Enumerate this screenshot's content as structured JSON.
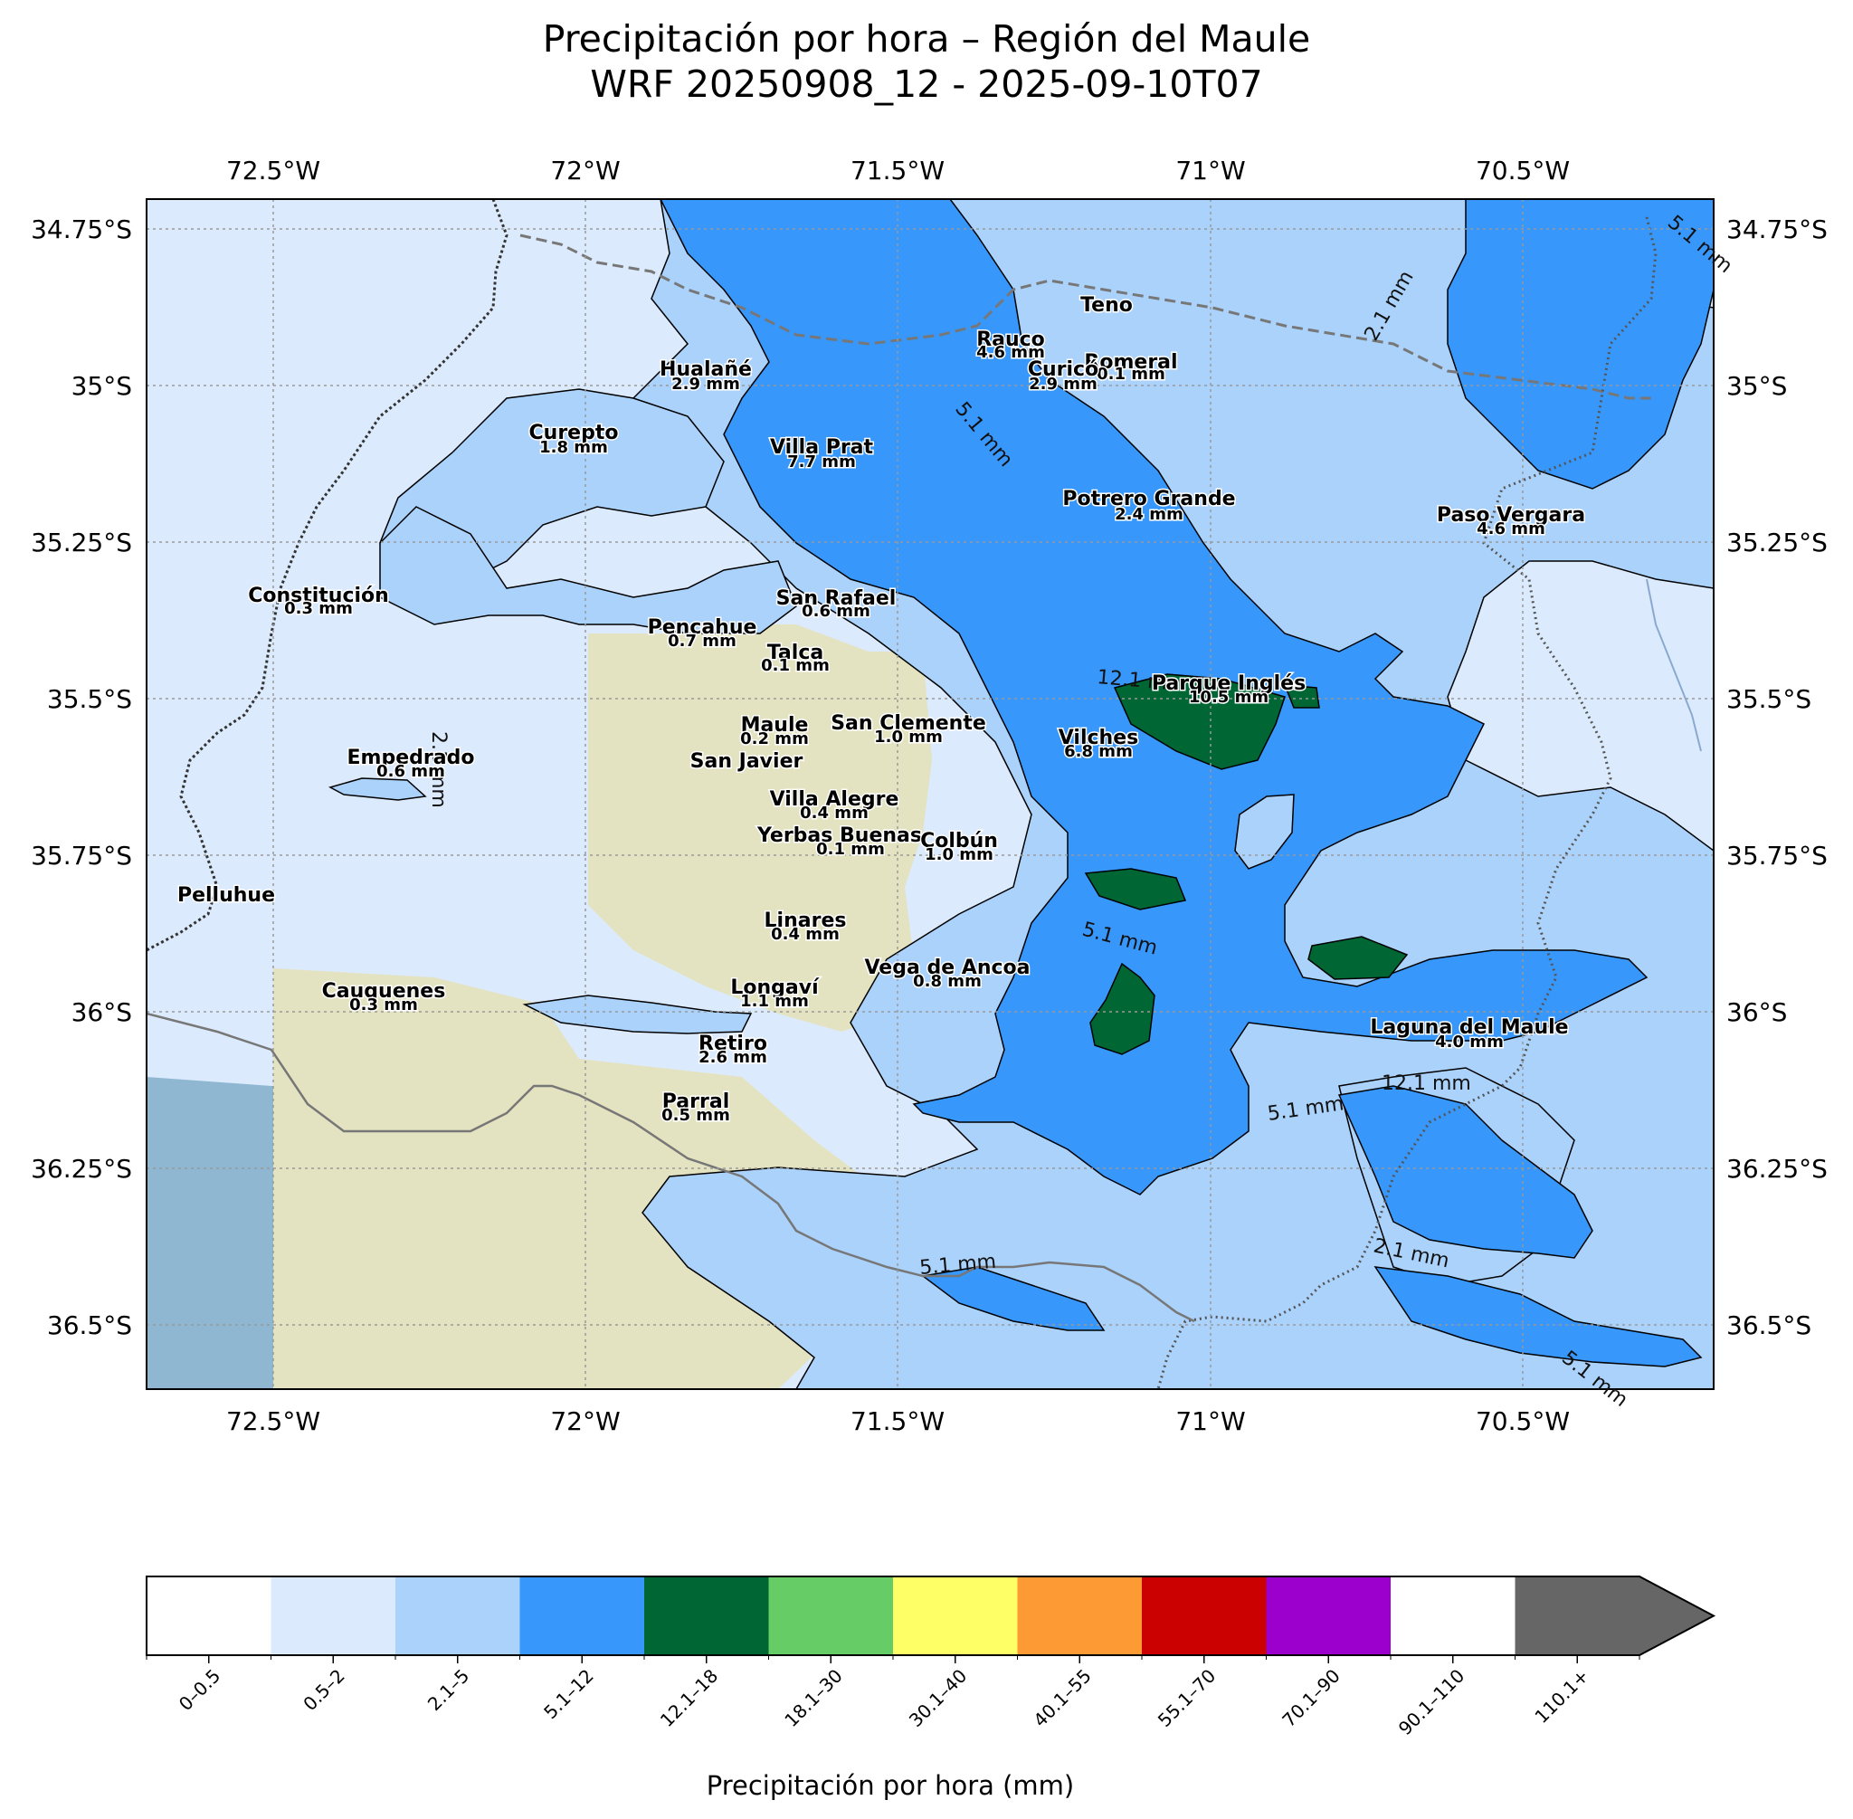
{
  "title": {
    "line1": "Precipitación por hora – Región del Maule",
    "line2": "WRF 20250908_12 - 2025-09-10T07"
  },
  "axes": {
    "lon_ticks": [
      "72.5°W",
      "72°W",
      "71.5°W",
      "71°W",
      "70.5°W"
    ],
    "lat_ticks": [
      "34.75°S",
      "35°S",
      "35.25°S",
      "35.5°S",
      "35.75°S",
      "36°S",
      "36.25°S",
      "36.5°S"
    ]
  },
  "stations": [
    {
      "name": "Teno",
      "value": ""
    },
    {
      "name": "Rauco",
      "value": "4.6 mm"
    },
    {
      "name": "Romeral",
      "value": "0.1 mm"
    },
    {
      "name": "Curicó",
      "value": "2.9 mm"
    },
    {
      "name": "Hualañé",
      "value": "2.9 mm"
    },
    {
      "name": "Curepto",
      "value": "1.8 mm"
    },
    {
      "name": "Villa Prat",
      "value": "7.7 mm"
    },
    {
      "name": "Potrero Grande",
      "value": "2.4 mm"
    },
    {
      "name": "Paso Vergara",
      "value": "4.6 mm"
    },
    {
      "name": "Constitución",
      "value": "0.3 mm"
    },
    {
      "name": "San Rafael",
      "value": "0.6 mm"
    },
    {
      "name": "Pencahue",
      "value": "0.7 mm"
    },
    {
      "name": "Talca",
      "value": "0.1 mm"
    },
    {
      "name": "Parque Inglés",
      "value": "10.5 mm"
    },
    {
      "name": "Maule",
      "value": "0.2 mm"
    },
    {
      "name": "San Clemente",
      "value": "1.0 mm"
    },
    {
      "name": "San Javier",
      "value": ""
    },
    {
      "name": "Vilches",
      "value": "6.8 mm"
    },
    {
      "name": "Empedrado",
      "value": "0.6 mm"
    },
    {
      "name": "Villa Alegre",
      "value": "0.4 mm"
    },
    {
      "name": "Yerbas Buenas",
      "value": "0.1 mm"
    },
    {
      "name": "Colbún",
      "value": "1.0 mm"
    },
    {
      "name": "Pelluhue",
      "value": ""
    },
    {
      "name": "Linares",
      "value": "0.4 mm"
    },
    {
      "name": "Vega de Ancoa",
      "value": "0.8 mm"
    },
    {
      "name": "Cauquenes",
      "value": "0.3 mm"
    },
    {
      "name": "Longaví",
      "value": "1.1 mm"
    },
    {
      "name": "Retiro",
      "value": "2.6 mm"
    },
    {
      "name": "Parral",
      "value": "0.5 mm"
    },
    {
      "name": "Laguna del Maule",
      "value": "4.0 mm"
    }
  ],
  "contour_labels": [
    "5.1 mm",
    "2.1 mm",
    "12.1 mm",
    "2.1 mm",
    "5.1 mm",
    "12.1 mm",
    "5.1 mm",
    "2.1 mm",
    "5.1 mm",
    "5.1 mm",
    "5.1 mm"
  ],
  "colorbar": {
    "label": "Precipitación por hora (mm)",
    "bins": [
      {
        "label": "0–0.5",
        "color": "#ffffff"
      },
      {
        "label": "0.5–2",
        "color": "#dbeafc"
      },
      {
        "label": "2.1–5",
        "color": "#abd2fb"
      },
      {
        "label": "5.1–12",
        "color": "#3797fb"
      },
      {
        "label": "12.1–18",
        "color": "#006734"
      },
      {
        "label": "18.1–30",
        "color": "#66cd66"
      },
      {
        "label": "30.1–40",
        "color": "#fefe66"
      },
      {
        "label": "40.1–55",
        "color": "#fe9a34"
      },
      {
        "label": "55.1–70",
        "color": "#cb0000"
      },
      {
        "label": "70.1–90",
        "color": "#9b00cc"
      },
      {
        "label": "90.1–110",
        "color": "#ffffff"
      },
      {
        "label": "110.1+",
        "color": "#666666"
      }
    ]
  },
  "colors": {
    "ocean": "#8fb7d1",
    "land_coastal": "#e3e2c2",
    "mountain": "#cfd6cd"
  }
}
